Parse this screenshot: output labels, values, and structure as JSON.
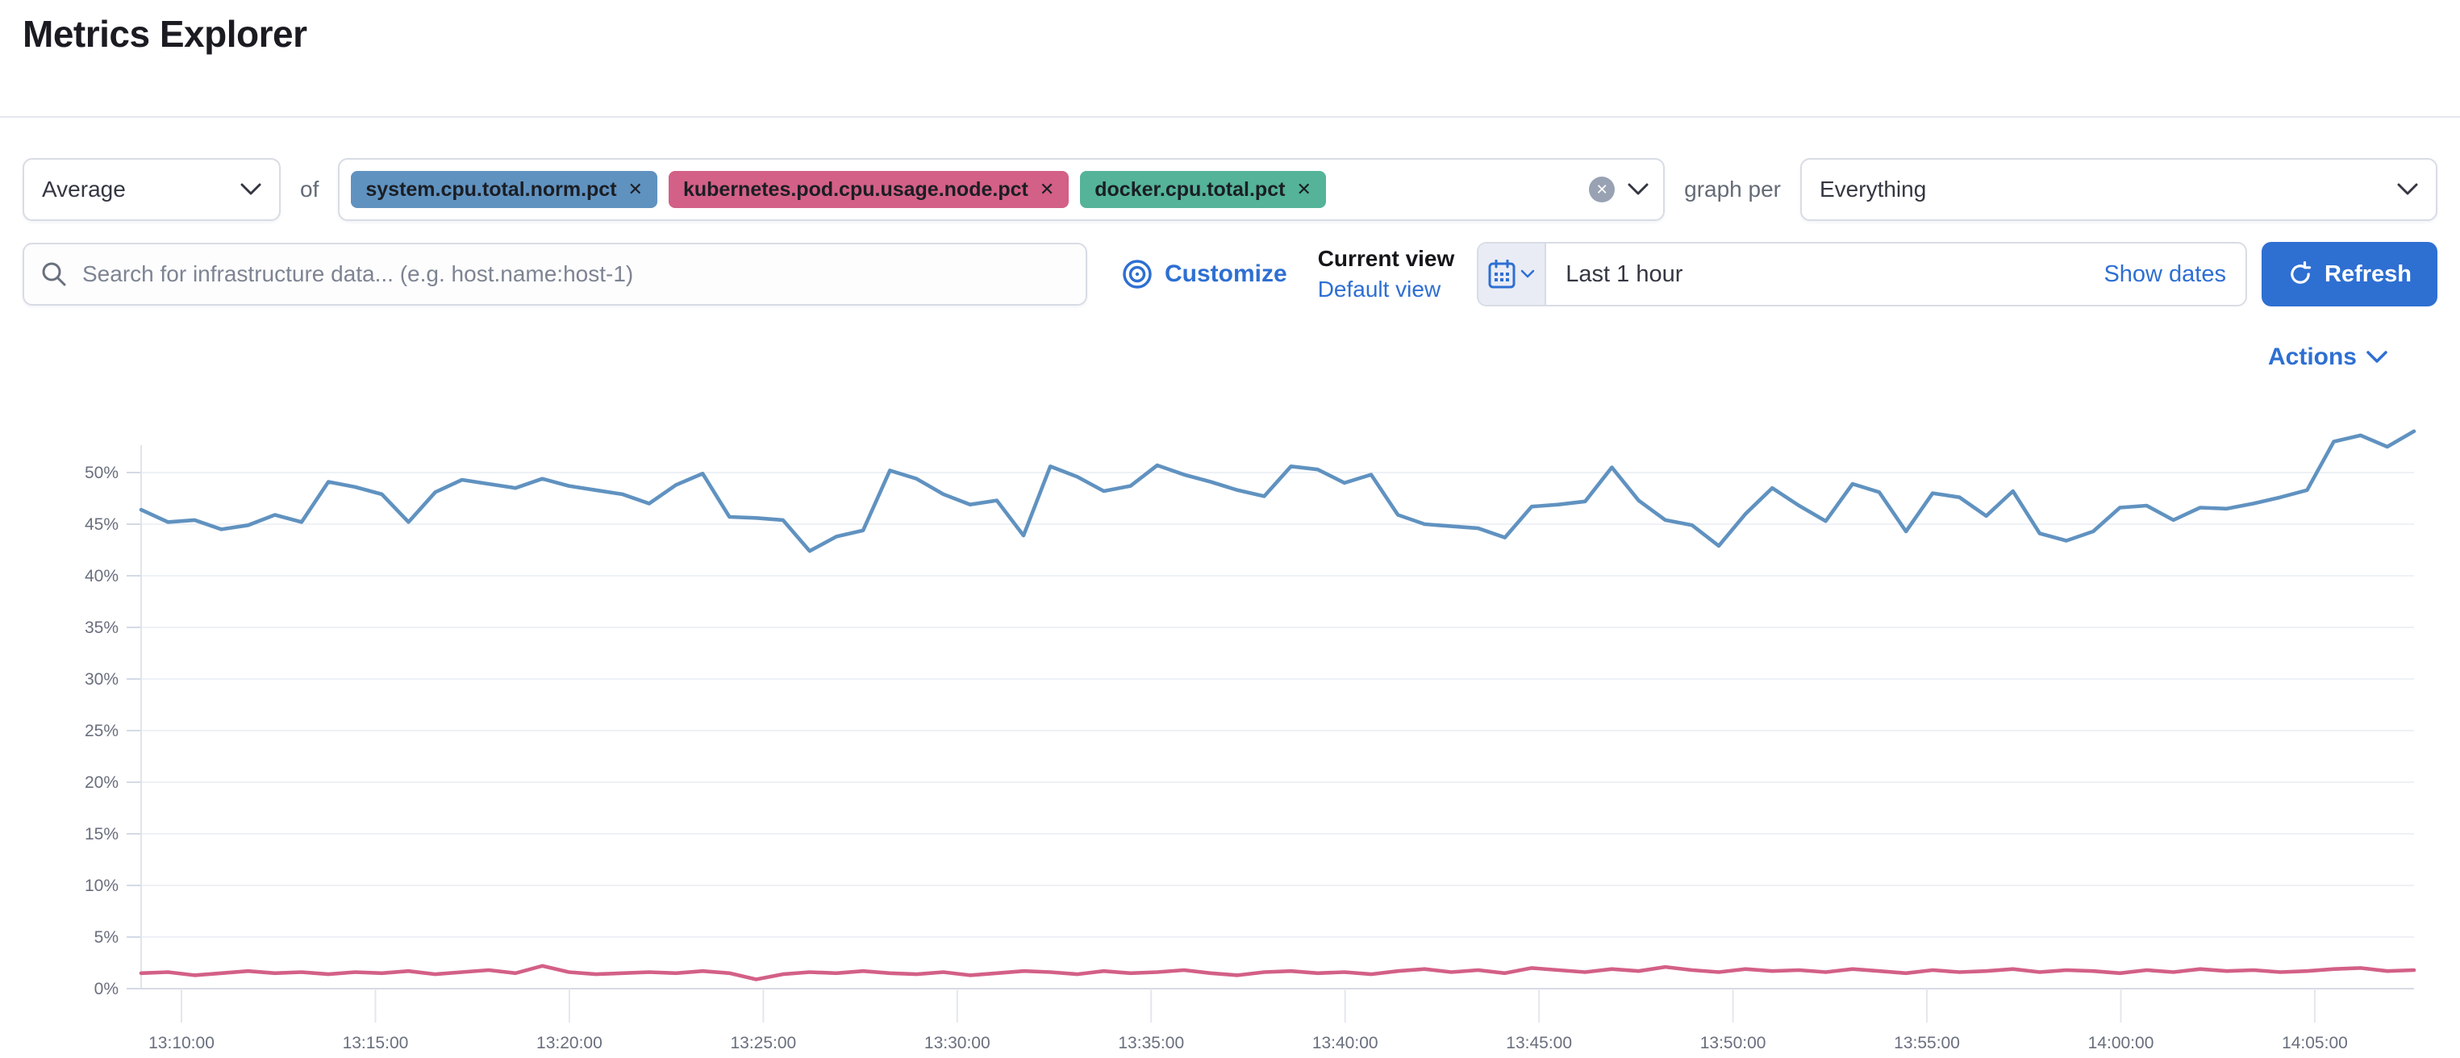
{
  "page": {
    "title": "Metrics Explorer"
  },
  "toolbar": {
    "aggregation_value": "Average",
    "of_label": "of",
    "remove_icon": "✕",
    "metrics": [
      {
        "label": "system.cpu.total.norm.pct",
        "color": "#6092C0"
      },
      {
        "label": "kubernetes.pod.cpu.usage.node.pct",
        "color": "#D36086"
      },
      {
        "label": "docker.cpu.total.pct",
        "color": "#54B399"
      }
    ],
    "graph_per_label": "graph per",
    "group_by_value": "Everything"
  },
  "searchbar": {
    "placeholder": "Search for infrastructure data... (e.g. host.name:host-1)",
    "value": "",
    "customize_label": "Customize",
    "current_view_label": "Current view",
    "view_name": "Default view",
    "time_range": "Last 1 hour",
    "show_dates_label": "Show dates",
    "refresh_label": "Refresh"
  },
  "actions_label": "Actions",
  "chart_data": {
    "type": "line",
    "title": "",
    "xlabel": "",
    "ylabel": "",
    "legend": "none",
    "grid": true,
    "ylim": [
      0,
      55
    ],
    "y_ticks": [
      "0%",
      "5%",
      "10%",
      "15%",
      "20%",
      "25%",
      "30%",
      "35%",
      "40%",
      "45%",
      "50%"
    ],
    "x_ticks": [
      "13:10:00",
      "13:15:00",
      "13:20:00",
      "13:25:00",
      "13:30:00",
      "13:35:00",
      "13:40:00",
      "13:45:00",
      "13:50:00",
      "13:55:00",
      "14:00:00",
      "14:05:00"
    ],
    "series": [
      {
        "name": "system.cpu.total.norm.pct",
        "color": "#6092C0",
        "unit": "%",
        "values": [
          46.4,
          45.2,
          45.4,
          44.5,
          44.9,
          45.9,
          45.2,
          49.1,
          48.6,
          47.9,
          45.2,
          48.1,
          49.3,
          48.9,
          48.5,
          49.4,
          48.7,
          48.3,
          47.9,
          47.0,
          48.8,
          49.9,
          45.7,
          45.6,
          45.4,
          42.4,
          43.8,
          44.4,
          50.2,
          49.4,
          47.9,
          46.9,
          47.3,
          43.9,
          50.6,
          49.6,
          48.2,
          48.7,
          50.7,
          49.8,
          49.1,
          48.3,
          47.7,
          50.6,
          50.3,
          49.0,
          49.8,
          45.9,
          45.0,
          44.8,
          44.6,
          43.7,
          46.7,
          46.9,
          47.2,
          50.5,
          47.3,
          45.4,
          44.9,
          42.9,
          46.0,
          48.5,
          46.8,
          45.3,
          48.9,
          48.1,
          44.3,
          48.0,
          47.6,
          45.8,
          48.2,
          44.1,
          43.4,
          44.3,
          46.6,
          46.8,
          45.4,
          46.6,
          46.5,
          47.0,
          47.6,
          48.3,
          53.0,
          53.6,
          52.5,
          54.0
        ]
      },
      {
        "name": "kubernetes.pod.cpu.usage.node.pct",
        "color": "#D36086",
        "unit": "%",
        "values": [
          1.5,
          1.6,
          1.3,
          1.5,
          1.7,
          1.5,
          1.6,
          1.4,
          1.6,
          1.5,
          1.7,
          1.4,
          1.6,
          1.8,
          1.5,
          2.2,
          1.6,
          1.4,
          1.5,
          1.6,
          1.5,
          1.7,
          1.5,
          0.9,
          1.4,
          1.6,
          1.5,
          1.7,
          1.5,
          1.4,
          1.6,
          1.3,
          1.5,
          1.7,
          1.6,
          1.4,
          1.7,
          1.5,
          1.6,
          1.8,
          1.5,
          1.3,
          1.6,
          1.7,
          1.5,
          1.6,
          1.4,
          1.7,
          1.9,
          1.6,
          1.8,
          1.5,
          2.0,
          1.8,
          1.6,
          1.9,
          1.7,
          2.1,
          1.8,
          1.6,
          1.9,
          1.7,
          1.8,
          1.6,
          1.9,
          1.7,
          1.5,
          1.8,
          1.6,
          1.7,
          1.9,
          1.6,
          1.8,
          1.7,
          1.5,
          1.8,
          1.6,
          1.9,
          1.7,
          1.8,
          1.6,
          1.7,
          1.9,
          2.0,
          1.7,
          1.8
        ]
      }
    ]
  }
}
